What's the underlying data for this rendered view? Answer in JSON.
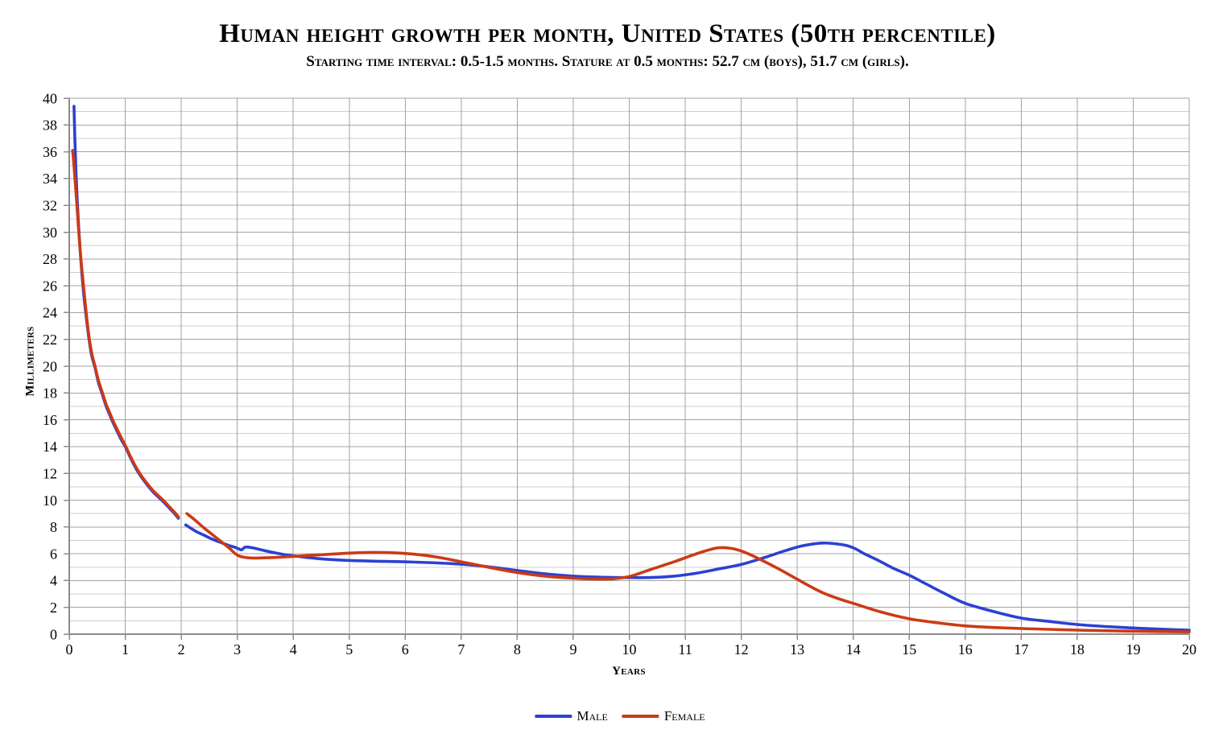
{
  "title": "Human height growth per month, United States (50th percentile)",
  "subtitle": "Starting time interval: 0.5-1.5 months. Stature at 0.5 months: 52.7 cm (boys), 51.7 cm (girls).",
  "chart_data": {
    "type": "line",
    "title": "Human height growth per month, United States (50th percentile)",
    "subtitle": "Starting time interval: 0.5-1.5 months. Stature at 0.5 months: 52.7 cm (boys), 51.7 cm (girls).",
    "xlabel": "Years",
    "ylabel": "Millimeters",
    "xlim": [
      0,
      20
    ],
    "ylim": [
      0,
      40
    ],
    "grid": true,
    "x_tick_labels": [
      "0",
      "1",
      "2",
      "3",
      "4",
      "5",
      "6",
      "7",
      "8",
      "9",
      "10",
      "11",
      "12",
      "13",
      "14",
      "15",
      "16",
      "17",
      "18",
      "19",
      "20"
    ],
    "y_tick_labels": [
      "0",
      "2",
      "4",
      "6",
      "8",
      "10",
      "12",
      "14",
      "16",
      "18",
      "20",
      "22",
      "24",
      "26",
      "28",
      "30",
      "32",
      "34",
      "36",
      "38",
      "40"
    ],
    "colors": {
      "male": "#2b41d3",
      "female": "#cc3a15",
      "grid_major": "#a3a3a3",
      "grid_minor": "#cdcdcd",
      "axis": "#8c8c8c"
    },
    "legend": {
      "position": "bottom-center",
      "entries": [
        {
          "label": "Male",
          "color": "#2b41d3"
        },
        {
          "label": "Female",
          "color": "#cc3a15"
        }
      ]
    },
    "series": [
      {
        "name": "Male",
        "color": "#2b41d3",
        "segments": [
          [
            [
              0.085,
              39.4
            ],
            [
              0.1,
              37.0
            ],
            [
              0.12,
              34.5
            ],
            [
              0.15,
              31.8
            ],
            [
              0.18,
              29.6
            ],
            [
              0.22,
              27.2
            ],
            [
              0.26,
              25.3
            ],
            [
              0.3,
              23.8
            ],
            [
              0.35,
              22.1
            ],
            [
              0.4,
              20.8
            ],
            [
              0.46,
              19.9
            ],
            [
              0.52,
              18.8
            ],
            [
              0.59,
              17.9
            ],
            [
              0.66,
              17.0
            ],
            [
              0.72,
              16.4
            ],
            [
              0.78,
              15.8
            ],
            [
              0.86,
              15.1
            ],
            [
              0.93,
              14.5
            ],
            [
              1.0,
              14.0
            ],
            [
              1.1,
              13.1
            ],
            [
              1.2,
              12.3
            ],
            [
              1.3,
              11.65
            ],
            [
              1.4,
              11.1
            ],
            [
              1.5,
              10.6
            ],
            [
              1.6,
              10.2
            ],
            [
              1.7,
              9.8
            ],
            [
              1.8,
              9.35
            ],
            [
              1.88,
              9.0
            ],
            [
              1.95,
              8.65
            ]
          ],
          [
            [
              2.08,
              8.15
            ],
            [
              2.25,
              7.7
            ],
            [
              2.4,
              7.4
            ],
            [
              2.55,
              7.1
            ],
            [
              2.7,
              6.85
            ],
            [
              2.85,
              6.62
            ],
            [
              2.95,
              6.5
            ],
            [
              3.02,
              6.38
            ],
            [
              3.08,
              6.3
            ],
            [
              3.15,
              6.5
            ],
            [
              3.3,
              6.42
            ],
            [
              3.5,
              6.22
            ],
            [
              3.7,
              6.05
            ],
            [
              3.9,
              5.9
            ],
            [
              4.1,
              5.8
            ],
            [
              4.3,
              5.7
            ],
            [
              4.5,
              5.62
            ],
            [
              4.75,
              5.55
            ],
            [
              5.0,
              5.5
            ],
            [
              5.5,
              5.44
            ],
            [
              6.0,
              5.4
            ],
            [
              6.5,
              5.33
            ],
            [
              7.0,
              5.22
            ],
            [
              7.5,
              5.02
            ],
            [
              8.0,
              4.75
            ],
            [
              8.5,
              4.5
            ],
            [
              9.0,
              4.33
            ],
            [
              9.5,
              4.25
            ],
            [
              10.0,
              4.22
            ],
            [
              10.4,
              4.23
            ],
            [
              10.8,
              4.33
            ],
            [
              11.2,
              4.55
            ],
            [
              11.6,
              4.87
            ],
            [
              12.0,
              5.2
            ],
            [
              12.4,
              5.7
            ],
            [
              12.8,
              6.25
            ],
            [
              13.1,
              6.6
            ],
            [
              13.45,
              6.8
            ],
            [
              13.8,
              6.68
            ],
            [
              14.0,
              6.45
            ],
            [
              14.2,
              6.0
            ],
            [
              14.45,
              5.5
            ],
            [
              14.7,
              4.95
            ],
            [
              15.0,
              4.4
            ],
            [
              15.3,
              3.75
            ],
            [
              15.6,
              3.1
            ],
            [
              16.0,
              2.3
            ],
            [
              16.5,
              1.7
            ],
            [
              17.0,
              1.2
            ],
            [
              17.5,
              0.95
            ],
            [
              18.0,
              0.72
            ],
            [
              18.5,
              0.57
            ],
            [
              19.0,
              0.46
            ],
            [
              19.5,
              0.37
            ],
            [
              20.0,
              0.3
            ]
          ]
        ]
      },
      {
        "name": "Female",
        "color": "#cc3a15",
        "segments": [
          [
            [
              0.06,
              36.1
            ],
            [
              0.08,
              35.2
            ],
            [
              0.1,
              34.1
            ],
            [
              0.13,
              32.4
            ],
            [
              0.16,
              30.6
            ],
            [
              0.2,
              28.4
            ],
            [
              0.25,
              26.2
            ],
            [
              0.3,
              24.1
            ],
            [
              0.35,
              22.3
            ],
            [
              0.4,
              21.0
            ],
            [
              0.46,
              20.0
            ],
            [
              0.52,
              18.95
            ],
            [
              0.59,
              18.05
            ],
            [
              0.66,
              17.15
            ],
            [
              0.72,
              16.55
            ],
            [
              0.78,
              15.95
            ],
            [
              0.86,
              15.25
            ],
            [
              0.93,
              14.65
            ],
            [
              1.0,
              14.1
            ],
            [
              1.1,
              13.2
            ],
            [
              1.2,
              12.4
            ],
            [
              1.3,
              11.75
            ],
            [
              1.4,
              11.2
            ],
            [
              1.5,
              10.7
            ],
            [
              1.6,
              10.3
            ],
            [
              1.7,
              9.9
            ],
            [
              1.8,
              9.45
            ],
            [
              1.88,
              9.1
            ],
            [
              1.95,
              8.75
            ]
          ],
          [
            [
              2.1,
              9.0
            ],
            [
              2.25,
              8.5
            ],
            [
              2.4,
              7.95
            ],
            [
              2.55,
              7.45
            ],
            [
              2.7,
              6.95
            ],
            [
              2.85,
              6.45
            ],
            [
              3.0,
              5.9
            ],
            [
              3.15,
              5.72
            ],
            [
              3.3,
              5.68
            ],
            [
              3.5,
              5.7
            ],
            [
              3.75,
              5.74
            ],
            [
              4.0,
              5.8
            ],
            [
              4.3,
              5.88
            ],
            [
              4.6,
              5.95
            ],
            [
              5.0,
              6.05
            ],
            [
              5.4,
              6.1
            ],
            [
              5.8,
              6.07
            ],
            [
              6.2,
              5.95
            ],
            [
              6.6,
              5.73
            ],
            [
              7.0,
              5.4
            ],
            [
              7.3,
              5.15
            ],
            [
              7.6,
              4.9
            ],
            [
              8.0,
              4.6
            ],
            [
              8.5,
              4.33
            ],
            [
              9.0,
              4.18
            ],
            [
              9.4,
              4.12
            ],
            [
              9.7,
              4.13
            ],
            [
              10.0,
              4.3
            ],
            [
              10.4,
              4.85
            ],
            [
              10.8,
              5.4
            ],
            [
              11.1,
              5.85
            ],
            [
              11.35,
              6.2
            ],
            [
              11.6,
              6.45
            ],
            [
              11.85,
              6.38
            ],
            [
              12.1,
              6.05
            ],
            [
              12.4,
              5.45
            ],
            [
              12.7,
              4.8
            ],
            [
              13.0,
              4.1
            ],
            [
              13.4,
              3.2
            ],
            [
              13.7,
              2.7
            ],
            [
              14.0,
              2.3
            ],
            [
              14.5,
              1.65
            ],
            [
              15.0,
              1.15
            ],
            [
              15.5,
              0.85
            ],
            [
              16.0,
              0.62
            ],
            [
              16.5,
              0.5
            ],
            [
              17.0,
              0.42
            ],
            [
              17.5,
              0.36
            ],
            [
              18.0,
              0.3
            ],
            [
              18.5,
              0.26
            ],
            [
              19.0,
              0.22
            ],
            [
              19.5,
              0.19
            ],
            [
              20.0,
              0.17
            ]
          ]
        ]
      }
    ]
  }
}
